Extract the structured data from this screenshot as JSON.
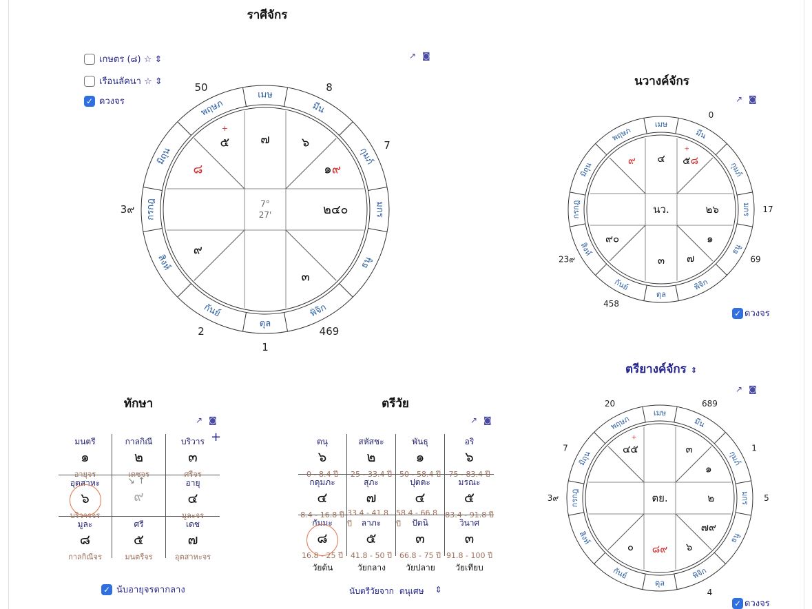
{
  "titles": {
    "rasi": "ราศีจักร",
    "navang": "นวางค์จักร",
    "taksa": "ทักษา",
    "triwai": "ตรีวัย",
    "triyang": "ตรียางค์จักร",
    "triyang_toggle": "⌃⌄"
  },
  "options": [
    {
      "label": "เกษตร (๘) ☆ ⇕",
      "checked": false
    },
    {
      "label": "เรือนลัคนา ☆ ⇕",
      "checked": false
    },
    {
      "label": "ดวงจร",
      "checked": true
    }
  ],
  "signs": [
    "เมษ",
    "มีน",
    "กุมภ์",
    "มกร",
    "ธนู",
    "พิจิก",
    "ตุล",
    "กันย์",
    "สิงห์",
    "กรกฎ",
    "มิถุน",
    "พฤษภ"
  ],
  "colors": {
    "sign": "#2a5d9f",
    "red": "#d32f2f",
    "line": "#555",
    "grid": "#999"
  },
  "charts": {
    "rasi": {
      "center": [
        "7°",
        "27'"
      ],
      "houses": [
        [
          {
            "t": "๗"
          }
        ],
        [
          {
            "t": "๖"
          }
        ],
        [
          {
            "t": "๑"
          },
          {
            "t": "๙",
            "red": true
          }
        ],
        [
          {
            "t": "๒๔๐"
          }
        ],
        [],
        [
          {
            "t": "๓"
          }
        ],
        [],
        [],
        [
          {
            "t": "๙"
          }
        ],
        [],
        [
          {
            "t": "๘",
            "red": true
          }
        ],
        [
          {
            "t": "๕",
            "plus": true
          }
        ]
      ],
      "outer": [
        "",
        "8",
        "7",
        "",
        "",
        "469",
        "1",
        "2",
        "",
        "3๙",
        "",
        "50"
      ]
    },
    "navang": {
      "center": [
        "นว."
      ],
      "houses": [
        [
          {
            "t": "๔"
          }
        ],
        [
          {
            "t": "๕",
            "plus": true
          },
          {
            "t": "๘",
            "red": true
          }
        ],
        [],
        [
          {
            "t": "๒๖"
          }
        ],
        [
          {
            "t": "๑"
          }
        ],
        [
          {
            "t": "๗"
          }
        ],
        [
          {
            "t": "๓"
          }
        ],
        [],
        [
          {
            "t": "๙๐"
          }
        ],
        [],
        [],
        [
          {
            "t": "๙",
            "red": true
          }
        ]
      ],
      "outer": [
        "",
        "0",
        "",
        "17",
        "69",
        "",
        "",
        "458",
        "23๙",
        "",
        "",
        ""
      ],
      "dongjon": "ดวงจร"
    },
    "triyang": {
      "center": [
        "ตย."
      ],
      "houses": [
        [],
        [
          {
            "t": "๓"
          }
        ],
        [
          {
            "t": "๑"
          }
        ],
        [
          {
            "t": "๒"
          }
        ],
        [
          {
            "t": "๗๙"
          }
        ],
        [
          {
            "t": "๖"
          }
        ],
        [
          {
            "t": "๘๙",
            "red": true
          }
        ],
        [
          {
            "t": "๐"
          }
        ],
        [],
        [],
        [],
        [
          {
            "t": "๔"
          },
          {
            "t": "๕",
            "plus": true
          }
        ]
      ],
      "outer": [
        "",
        "689",
        "1",
        "5",
        "",
        "4",
        "",
        "",
        "",
        "3๙",
        "7",
        "20"
      ],
      "dongjon": "ดวงจร"
    }
  },
  "taksa": {
    "cells": [
      {
        "name": "มนตรี",
        "value": "๑",
        "sub": "อายุจร"
      },
      {
        "name": "กาลกิณี",
        "value": "๒",
        "sub": "เดชจร"
      },
      {
        "name": "บริวาร",
        "value": "๓",
        "sub": "ศรีจร"
      },
      {
        "name": "อุตสาหะ",
        "value": "๖",
        "sub": "บริวารจร",
        "circled": true
      },
      {
        "name": "",
        "value": "๙",
        "sub": "",
        "center": true,
        "arrows": "↘ ↑"
      },
      {
        "name": "อายุ",
        "value": "๔",
        "sub": "มูละจร"
      },
      {
        "name": "มูละ",
        "value": "๘",
        "sub": "กาลกิณีจร"
      },
      {
        "name": "ศรี",
        "value": "๕",
        "sub": "มนตรีจร"
      },
      {
        "name": "เดช",
        "value": "๗",
        "sub": "อุตสาหะจร"
      }
    ],
    "plus": "+",
    "option": {
      "label": "นับอายุจรตากลาง",
      "checked": true
    }
  },
  "triwai": {
    "cells": [
      {
        "name": "ตนุ",
        "value": "๖",
        "sub": "0 - 8.4 ปี"
      },
      {
        "name": "สหัสชะ",
        "value": "๒",
        "sub": "25 - 33.4 ปี"
      },
      {
        "name": "พันธุ",
        "value": "๑",
        "sub": "50 - 58.4 ปี"
      },
      {
        "name": "อริ",
        "value": "๖",
        "sub": "75 - 83.4 ปี"
      },
      {
        "name": "กดุมภะ",
        "value": "๔",
        "sub": "8.4 - 16.8 ปี"
      },
      {
        "name": "สุภะ",
        "value": "๗",
        "sub": "33.4 - 41.8 ปี"
      },
      {
        "name": "ปุตตะ",
        "value": "๔",
        "sub": "58.4 - 66.8 ปี"
      },
      {
        "name": "มรณะ",
        "value": "๕",
        "sub": "83.4 - 91.8 ปี"
      },
      {
        "name": "กัมมะ",
        "value": "๘",
        "sub": "16.8 - 25 ปี",
        "circled": true
      },
      {
        "name": "ลาภะ",
        "value": "๕",
        "sub": "41.8 - 50 ปี"
      },
      {
        "name": "ปัตนิ",
        "value": "๓",
        "sub": "66.8 - 75 ปี"
      },
      {
        "name": "วินาศ",
        "value": "๓",
        "sub": "91.8 - 100 ปี"
      }
    ],
    "ages": [
      "วัยต้น",
      "วัยกลาง",
      "วัยปลาย",
      "วัยเทียบ"
    ],
    "select_label": "นับตรีวัยจาก",
    "select_value": "ตนุเศษ",
    "select_icon": "⇕"
  }
}
